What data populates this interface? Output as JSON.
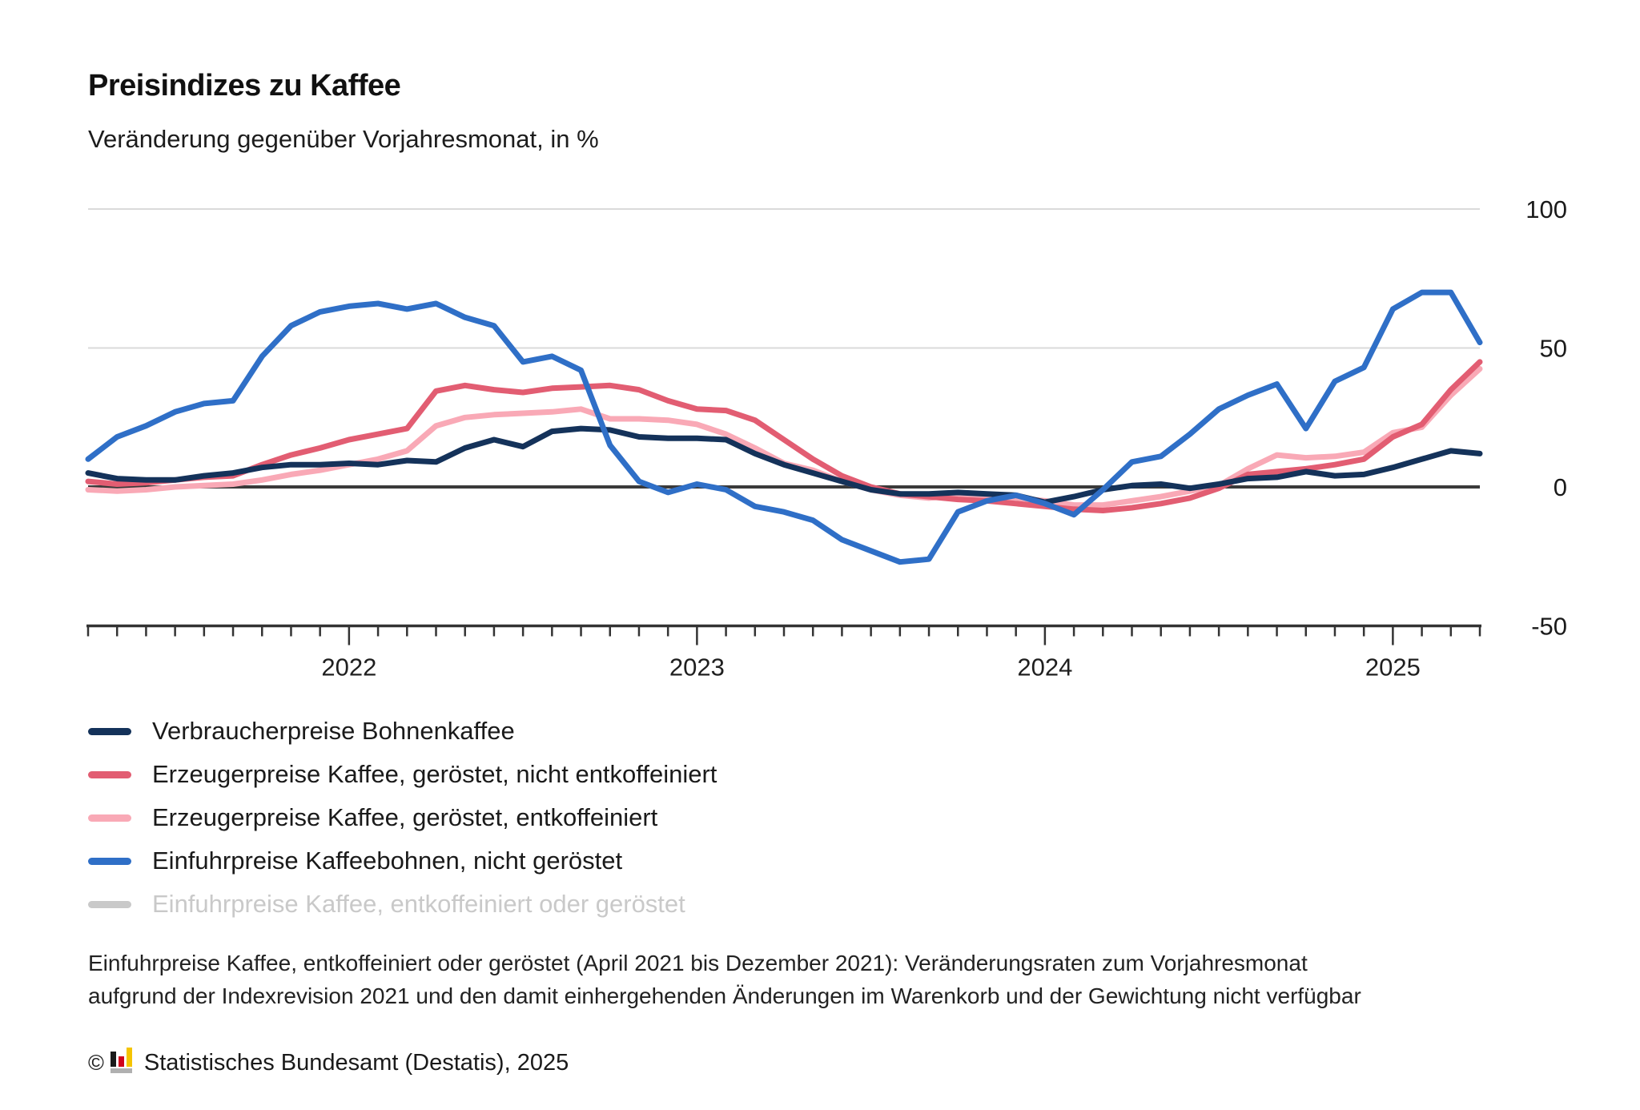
{
  "header": {
    "title": "Preisindizes zu Kaffee",
    "subtitle": "Veränderung gegenüber Vorjahresmonat, in %"
  },
  "chart_data": {
    "type": "line",
    "title": "Preisindizes zu Kaffee",
    "subtitle": "Veränderung gegenüber Vorjahresmonat, in %",
    "unit": "%",
    "ylim": [
      -50,
      100
    ],
    "y_ticks": [
      100,
      50,
      0,
      -50
    ],
    "grid": "horizontal",
    "legend_position": "bottom-left",
    "x": [
      "2021-04",
      "2021-05",
      "2021-06",
      "2021-07",
      "2021-08",
      "2021-09",
      "2021-10",
      "2021-11",
      "2021-12",
      "2022-01",
      "2022-02",
      "2022-03",
      "2022-04",
      "2022-05",
      "2022-06",
      "2022-07",
      "2022-08",
      "2022-09",
      "2022-10",
      "2022-11",
      "2022-12",
      "2023-01",
      "2023-02",
      "2023-03",
      "2023-04",
      "2023-05",
      "2023-06",
      "2023-07",
      "2023-08",
      "2023-09",
      "2023-10",
      "2023-11",
      "2023-12",
      "2024-01",
      "2024-02",
      "2024-03",
      "2024-04",
      "2024-05",
      "2024-06",
      "2024-07",
      "2024-08",
      "2024-09",
      "2024-10",
      "2024-11",
      "2024-12",
      "2025-01",
      "2025-02",
      "2025-03",
      "2025-04"
    ],
    "x_tick_labels": [
      "2022",
      "2023",
      "2024",
      "2025"
    ],
    "series": [
      {
        "name": "Verbraucherpreise Bohnenkaffee",
        "color": "#14325A",
        "disabled": false,
        "values": [
          5,
          3,
          2.5,
          2.5,
          4,
          5,
          7,
          8,
          8,
          8.5,
          8,
          9.5,
          9,
          14,
          17,
          14.5,
          20,
          21,
          20.5,
          18,
          17.5,
          17.5,
          17,
          12,
          8,
          5,
          2,
          -1,
          -2.5,
          -2.5,
          -2,
          -2.5,
          -3,
          -5.5,
          -3.5,
          -1,
          0.5,
          1,
          -0.5,
          1,
          3,
          3.5,
          5.5,
          4,
          4.5,
          7,
          10,
          13,
          12
        ]
      },
      {
        "name": "Erzeugerpreise Kaffee, geröstet, nicht entkoffeiniert",
        "color": "#E25D72",
        "disabled": false,
        "values": [
          2,
          1,
          1.5,
          2.5,
          3.5,
          4,
          8,
          11.5,
          14,
          17,
          19,
          21,
          34.5,
          36.5,
          35,
          34,
          35.5,
          36,
          36.5,
          35,
          31,
          28,
          27.5,
          24,
          17,
          10,
          4,
          0,
          -2.5,
          -3.5,
          -4.5,
          -5,
          -6,
          -7,
          -8,
          -8.5,
          -7.5,
          -6,
          -4,
          -0.5,
          4.5,
          5.5,
          6.5,
          8,
          10,
          18,
          22.5,
          35,
          45
        ]
      },
      {
        "name": "Erzeugerpreise Kaffee, geröstet, entkoffeiniert",
        "color": "#F9A9B6",
        "disabled": false,
        "values": [
          -1,
          -1.5,
          -1,
          0,
          0.5,
          1,
          2.5,
          4.5,
          6,
          8,
          10,
          13,
          22,
          25,
          26,
          26.5,
          27,
          28,
          24.5,
          24.5,
          24,
          22.5,
          19,
          14,
          8.5,
          6,
          2,
          -1,
          -3,
          -4,
          -3,
          -3.5,
          -4,
          -5,
          -6.5,
          -6.5,
          -5,
          -3.5,
          -1.5,
          0.5,
          6.5,
          11.5,
          10.5,
          11,
          12.5,
          19.5,
          21.5,
          33,
          42.5
        ]
      },
      {
        "name": "Einfuhrpreise Kaffeebohnen, nicht geröstet",
        "color": "#2F6FC7",
        "disabled": false,
        "values": [
          10,
          18,
          22,
          27,
          30,
          31,
          47,
          58,
          63,
          65,
          66,
          64,
          66,
          61,
          58,
          45,
          47,
          42,
          15,
          2,
          -2,
          1,
          -1,
          -7,
          -9,
          -12,
          -19,
          -23,
          -27,
          -26,
          -9,
          -5,
          -3,
          -6,
          -10,
          -1,
          9,
          11,
          19,
          28,
          33,
          37,
          21,
          38,
          43,
          64,
          70,
          70,
          52
        ]
      },
      {
        "name": "Einfuhrpreise Kaffee, entkoffeiniert oder geröstet",
        "color": "#C9C9C9",
        "disabled": true,
        "values": null
      }
    ]
  },
  "footnote": {
    "lines": [
      "Einfuhrpreise Kaffee, entkoffeiniert oder geröstet (April 2021 bis Dezember 2021): Veränderungsraten zum Vorjahresmonat",
      "aufgrund der Indexrevision 2021 und den damit einhergehenden Änderungen im Warenkorb und der Gewichtung nicht verfügbar"
    ]
  },
  "copyright": {
    "symbol": "©",
    "text": "Statistisches Bundesamt (Destatis), 2025"
  }
}
